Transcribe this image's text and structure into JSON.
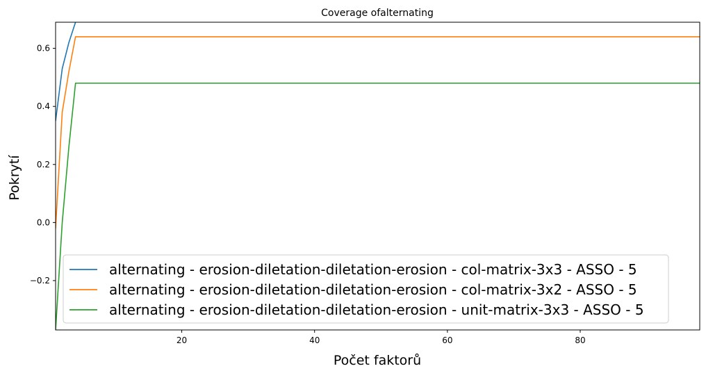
{
  "chart_data": {
    "type": "line",
    "title": "Coverage ofalternating",
    "xlabel": "Počet faktorů",
    "ylabel": "Pokrytí",
    "xlim": [
      1,
      98
    ],
    "ylim": [
      -0.37,
      0.69
    ],
    "xticks": [
      20,
      40,
      60,
      80
    ],
    "yticks": [
      -0.2,
      0.0,
      0.2,
      0.4,
      0.6
    ],
    "ytick_labels": [
      "−0.2",
      "0.0",
      "0.2",
      "0.4",
      "0.6"
    ],
    "grid": false,
    "legend_position": "lower-center",
    "series": [
      {
        "name": "alternating - erosion-diletation-diletation-erosion - col-matrix-3x3 - ASSO - 5",
        "color": "#1f77b4",
        "x": [
          1,
          2,
          3,
          4,
          5,
          98
        ],
        "y": [
          0.35,
          0.53,
          0.62,
          0.69,
          0.73,
          0.73
        ]
      },
      {
        "name": "alternating - erosion-diletation-diletation-erosion - col-matrix-3x2 - ASSO - 5",
        "color": "#ff7f0e",
        "x": [
          1,
          2,
          3,
          4,
          98
        ],
        "y": [
          -0.02,
          0.38,
          0.52,
          0.64,
          0.64
        ]
      },
      {
        "name": "alternating - erosion-diletation-diletation-erosion - unit-matrix-3x3 - ASSO - 5",
        "color": "#2ca02c",
        "x": [
          1,
          2,
          3,
          4,
          98
        ],
        "y": [
          -0.37,
          0.0,
          0.26,
          0.48,
          0.48
        ]
      }
    ]
  }
}
